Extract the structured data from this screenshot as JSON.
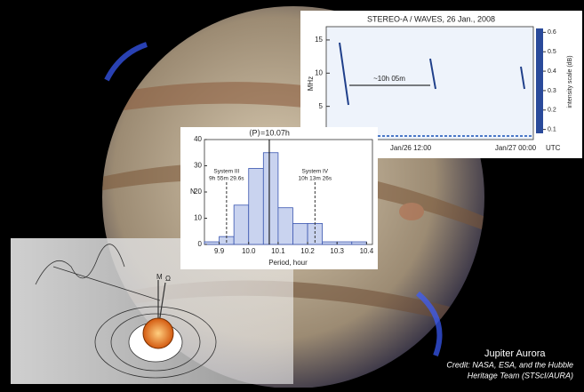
{
  "chart_data": {
    "type": "histogram",
    "xlabel": "Period, hour",
    "ylabel": "N",
    "bins": [
      9.85,
      9.9,
      9.95,
      10.0,
      10.05,
      10.1,
      10.15,
      10.2,
      10.25,
      10.3,
      10.35,
      10.4
    ],
    "values": [
      1,
      3,
      15,
      29,
      35,
      14,
      8,
      8,
      1,
      1,
      1
    ],
    "color": "#c9d3ef",
    "xlim": [
      9.85,
      10.42
    ],
    "ylim": [
      0,
      40
    ],
    "xticks": [
      9.9,
      {
        "value": 10,
        "label": "10.0"
      },
      10.1,
      10.2,
      10.3,
      10.4
    ],
    "yticks": [
      0,
      10,
      20,
      30,
      40
    ],
    "mean": {
      "value": 10.07,
      "label": "⟨P⟩=10.07h"
    },
    "reference_lines": [
      {
        "value": 9.925,
        "name": "System III",
        "label": "9h 55m 29.6s"
      },
      {
        "value": 10.225,
        "name": "System IV",
        "label": "10h 13m 26s"
      }
    ]
  },
  "spectrogram": {
    "title": "STEREO-A / WAVES,  26 Jan., 2008",
    "ylabel": "MHz",
    "ylim": [
      0,
      17
    ],
    "yticks": [
      5,
      10,
      15
    ],
    "xlabels": [
      "Jan/26 12:00",
      "Jan/27 00:00"
    ],
    "xunit": "UTC",
    "annotation": "~10h 05m",
    "colorbar_label": "intensity scale (dB)",
    "colorbar_lim": [
      0.08,
      0.62
    ],
    "colorbar_ticks": [
      0.1,
      0.2,
      0.3,
      0.4,
      0.5,
      0.6
    ]
  },
  "diagram": {
    "labels": [
      "M",
      "Ω"
    ]
  },
  "caption": {
    "title": "Jupiter Aurora",
    "credit": [
      "Credit: NASA, ESA, and the Hubble",
      "Heritage Team (STScI/AURA)"
    ]
  }
}
